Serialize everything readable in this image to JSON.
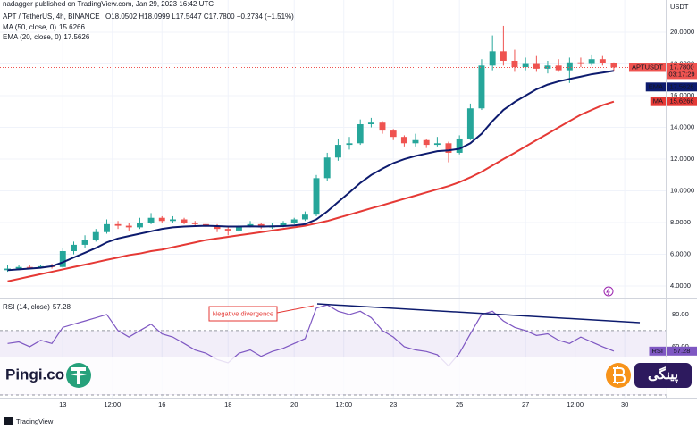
{
  "header": {
    "publisher": "nadagger published on TradingView.com, Jan 29, 2023 16:42 UTC",
    "symbol": "APT / TetherUS, 4h, BINANCE",
    "ohlc": "O18.0502 H18.0999 L17.5447 C17.7800 −0.2734 (−1.51%)",
    "brand_left": "Pingi.co",
    "brand_right": "پینگی",
    "footer": "TradingView"
  },
  "chart_data": [
    {
      "type": "candlestick",
      "axis_unit": "USDT",
      "x": [
        11.33,
        11.67,
        12,
        12.33,
        12.67,
        13,
        13.33,
        13.67,
        14,
        14.33,
        14.67,
        15,
        15.33,
        15.67,
        16,
        16.33,
        16.67,
        17,
        17.33,
        17.67,
        18,
        18.33,
        18.67,
        19,
        19.33,
        19.67,
        20,
        20.33,
        20.67,
        21,
        21.33,
        21.67,
        22,
        22.33,
        22.67,
        23,
        23.33,
        23.67,
        24,
        24.33,
        24.67,
        25,
        25.33,
        25.67,
        26,
        26.33,
        26.67,
        27,
        27.33,
        27.67,
        28,
        28.33,
        28.67,
        29,
        29.33,
        29.67
      ],
      "open": [
        5.0,
        5.1,
        5.2,
        5.15,
        5.25,
        5.2,
        6.2,
        6.6,
        6.9,
        7.4,
        7.9,
        7.8,
        7.7,
        8.0,
        8.3,
        8.1,
        8.2,
        8.0,
        7.9,
        7.8,
        7.6,
        7.5,
        7.8,
        7.9,
        7.7,
        7.8,
        8.0,
        8.2,
        8.5,
        10.8,
        12.1,
        12.9,
        13.0,
        14.2,
        14.3,
        13.8,
        13.4,
        13.0,
        13.2,
        12.9,
        13.0,
        12.4,
        13.3,
        15.2,
        17.9,
        18.8,
        18.2,
        17.8,
        18.0,
        17.7,
        17.9,
        17.6,
        18.1,
        18.0,
        18.3,
        18.05
      ],
      "high": [
        5.3,
        5.35,
        5.3,
        5.35,
        5.4,
        6.4,
        6.8,
        7.2,
        7.6,
        8.2,
        8.1,
        8.0,
        8.3,
        8.6,
        8.4,
        8.4,
        8.3,
        8.1,
        8.0,
        7.9,
        7.7,
        7.9,
        8.1,
        8.0,
        8.0,
        8.1,
        8.3,
        8.7,
        11.0,
        12.4,
        13.3,
        13.4,
        14.5,
        14.6,
        14.4,
        13.9,
        13.5,
        13.6,
        13.3,
        13.4,
        13.1,
        13.5,
        15.5,
        18.3,
        19.8,
        20.4,
        18.9,
        18.4,
        18.5,
        18.2,
        18.3,
        18.4,
        18.4,
        18.6,
        18.5,
        18.1
      ],
      "low": [
        4.9,
        5.0,
        5.05,
        5.1,
        5.1,
        5.15,
        6.0,
        6.4,
        6.8,
        7.3,
        7.6,
        7.5,
        7.6,
        7.9,
        8.0,
        8.0,
        7.9,
        7.8,
        7.7,
        7.4,
        7.2,
        7.4,
        7.7,
        7.6,
        7.6,
        7.7,
        7.9,
        8.1,
        8.4,
        10.6,
        11.9,
        12.6,
        12.9,
        14.0,
        13.6,
        13.2,
        12.8,
        12.8,
        12.7,
        12.8,
        11.8,
        12.3,
        13.2,
        15.1,
        17.6,
        17.9,
        17.5,
        17.6,
        17.5,
        17.4,
        17.5,
        16.8,
        17.8,
        17.9,
        17.9,
        17.54
      ],
      "close": [
        5.1,
        5.2,
        5.15,
        5.25,
        5.2,
        6.2,
        6.6,
        6.9,
        7.4,
        7.9,
        7.8,
        7.7,
        8.0,
        8.3,
        8.1,
        8.2,
        8.0,
        7.9,
        7.8,
        7.6,
        7.5,
        7.8,
        7.9,
        7.7,
        7.8,
        8.0,
        8.2,
        8.5,
        10.8,
        12.1,
        12.9,
        13.0,
        14.2,
        14.3,
        13.8,
        13.4,
        13.0,
        13.2,
        12.9,
        13.0,
        12.4,
        13.3,
        15.2,
        17.9,
        18.8,
        18.2,
        17.8,
        18.0,
        17.7,
        17.9,
        17.6,
        18.1,
        18.0,
        18.3,
        18.05,
        17.78
      ],
      "up_color": "#26a69a",
      "down_color": "#ef5350",
      "series": [
        {
          "name": "MA (50, close, 0)",
          "tag": "MA",
          "color": "#e53935",
          "values": [
            4.3,
            4.45,
            4.6,
            4.75,
            4.9,
            5.05,
            5.2,
            5.35,
            5.5,
            5.65,
            5.8,
            5.95,
            6.05,
            6.2,
            6.3,
            6.45,
            6.6,
            6.75,
            6.9,
            7.0,
            7.1,
            7.2,
            7.3,
            7.4,
            7.5,
            7.6,
            7.7,
            7.8,
            7.95,
            8.1,
            8.3,
            8.5,
            8.7,
            8.9,
            9.1,
            9.3,
            9.5,
            9.7,
            9.9,
            10.1,
            10.3,
            10.55,
            10.85,
            11.2,
            11.6,
            12.0,
            12.4,
            12.8,
            13.2,
            13.6,
            14.0,
            14.4,
            14.8,
            15.1,
            15.4,
            15.6266
          ]
        },
        {
          "name": "EMA (20, close, 0)",
          "tag": "EMA",
          "color": "#0d1b6e",
          "values": [
            5.0,
            5.05,
            5.1,
            5.15,
            5.25,
            5.5,
            5.8,
            6.1,
            6.4,
            6.75,
            7.0,
            7.15,
            7.3,
            7.45,
            7.6,
            7.7,
            7.75,
            7.78,
            7.8,
            7.78,
            7.75,
            7.75,
            7.76,
            7.75,
            7.76,
            7.78,
            7.82,
            7.9,
            8.2,
            8.7,
            9.3,
            9.9,
            10.5,
            11.0,
            11.4,
            11.75,
            12.0,
            12.2,
            12.35,
            12.5,
            12.55,
            12.65,
            13.0,
            13.6,
            14.4,
            15.1,
            15.6,
            16.0,
            16.4,
            16.7,
            16.9,
            17.05,
            17.2,
            17.35,
            17.45,
            17.5626
          ]
        }
      ],
      "last_tag": {
        "name": "APTUSDT",
        "value": 17.78,
        "label": "17.7800",
        "countdown": "03:17:29",
        "color": "#ef5350"
      },
      "xlim": [
        11.1,
        31.24
      ],
      "ylim": [
        3.44,
        22.03
      ],
      "yticks": [
        {
          "value": 4,
          "label": "4.0000"
        },
        {
          "value": 6,
          "label": "6.0000"
        },
        {
          "value": 8,
          "label": "8.0000"
        },
        {
          "value": 10,
          "label": "10.0000"
        },
        {
          "value": 12,
          "label": "12.0000"
        },
        {
          "value": 14,
          "label": "14.0000"
        },
        {
          "value": 16,
          "label": "16.0000"
        },
        {
          "value": 18,
          "label": "18.0000"
        },
        {
          "value": 20,
          "label": "20.0000"
        }
      ],
      "xticks": [
        {
          "value": 13,
          "label": "13"
        },
        {
          "value": 14.5,
          "label": "12:00"
        },
        {
          "value": 16,
          "label": "16"
        },
        {
          "value": 18,
          "label": "18"
        },
        {
          "value": 20,
          "label": "20"
        },
        {
          "value": 21.5,
          "label": "12:00"
        },
        {
          "value": 23,
          "label": "23"
        },
        {
          "value": 25,
          "label": "25"
        },
        {
          "value": 27,
          "label": "27"
        },
        {
          "value": 28.5,
          "label": "12:00"
        },
        {
          "value": 30,
          "label": "30"
        }
      ],
      "grid": true
    },
    {
      "type": "line",
      "ylim": [
        28.3,
        89.4
      ],
      "band": [
        30,
        70
      ],
      "yticks": [
        {
          "value": 60,
          "label": "60.00"
        },
        {
          "value": 80,
          "label": "80.00"
        }
      ],
      "series": [
        {
          "name": "RSI (14, close)",
          "tag": "RSI",
          "color": "#7e57c2",
          "values": [
            62,
            63,
            60,
            64,
            62,
            72,
            74,
            76,
            78,
            80,
            70,
            66,
            70,
            74,
            68,
            66,
            62,
            58,
            56,
            52,
            50,
            56,
            58,
            54,
            57,
            59,
            62,
            65,
            84,
            86,
            82,
            80,
            82,
            78,
            70,
            66,
            60,
            58,
            57,
            55,
            48,
            56,
            68,
            80,
            82,
            76,
            72,
            70,
            67,
            68,
            64,
            62,
            66,
            63,
            60,
            57.28
          ]
        }
      ],
      "annotation": "Negative divergence"
    }
  ]
}
